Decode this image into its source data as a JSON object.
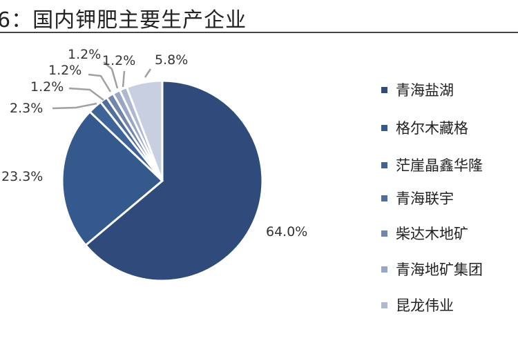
{
  "title": "6：国内钾肥主要生产企业",
  "chart_data": {
    "type": "pie",
    "start_angle": "12 o'clock, clockwise",
    "legend_position": "right",
    "slices": [
      {
        "name": "青海盐湖",
        "value": 64.0,
        "label": "64.0%",
        "color": "#2e4b7c"
      },
      {
        "name": "格尔木藏格",
        "value": 23.3,
        "label": "23.3%",
        "color": "#34598c"
      },
      {
        "name": "茫崖晶鑫华隆",
        "value": 2.3,
        "label": "2.3%",
        "color": "#3d6499"
      },
      {
        "name": "青海联宇",
        "value": 1.2,
        "label": "1.2%",
        "color": "#4e6f9e"
      },
      {
        "name": "柴达木地矿",
        "value": 1.2,
        "label": "1.2%",
        "color": "#7186ad"
      },
      {
        "name": "青海地矿集团",
        "value": 1.2,
        "label": "1.2%",
        "color": "#9aa6c4"
      },
      {
        "name": "昆龙伟业",
        "value": 1.2,
        "label": "1.2%",
        "color": "#b0b8cf"
      },
      {
        "name": "",
        "value": 5.8,
        "label": "5.8%",
        "color": "#c8cfe0"
      }
    ],
    "legend": [
      "青海盐湖",
      "格尔木藏格",
      "茫崖晶鑫华隆",
      "青海联宇",
      "柴达木地矿",
      "青海地矿集团",
      "昆龙伟业"
    ]
  }
}
